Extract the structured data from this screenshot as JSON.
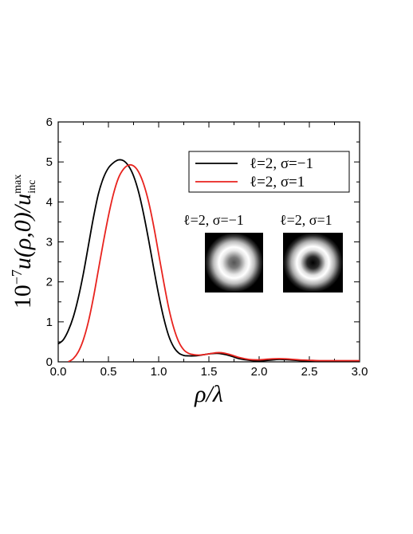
{
  "chart_data": {
    "type": "line",
    "xlabel": "ρ/λ",
    "ylabel": "10⁻⁷u(ρ,0)/u_inc^max",
    "ylabel_parts": {
      "prefix": "10",
      "exp": "−7",
      "mid": "u(ρ,0)/u",
      "sub": "inc",
      "sup": "max"
    },
    "xlim": [
      0.0,
      3.0
    ],
    "ylim": [
      0,
      6
    ],
    "xticks": [
      "0.0",
      "0.5",
      "1.0",
      "1.5",
      "2.0",
      "2.5",
      "3.0"
    ],
    "yticks": [
      "0",
      "1",
      "2",
      "3",
      "4",
      "5",
      "6"
    ],
    "grid": false,
    "legend_position": "top-right",
    "series": [
      {
        "name": "ℓ=2, σ=−1",
        "color": "#000000",
        "x": [
          0.0,
          0.05,
          0.1,
          0.15,
          0.2,
          0.25,
          0.3,
          0.35,
          0.4,
          0.45,
          0.5,
          0.55,
          0.6,
          0.65,
          0.7,
          0.75,
          0.8,
          0.85,
          0.9,
          0.95,
          1.0,
          1.05,
          1.1,
          1.15,
          1.2,
          1.25,
          1.3,
          1.35,
          1.4,
          1.45,
          1.5,
          1.55,
          1.6,
          1.65,
          1.7,
          1.75,
          1.8,
          1.9,
          2.0,
          2.1,
          2.2,
          2.3,
          2.4,
          2.5,
          2.6,
          2.8,
          3.0
        ],
        "y": [
          0.45,
          0.55,
          0.78,
          1.12,
          1.6,
          2.2,
          2.9,
          3.6,
          4.2,
          4.6,
          4.85,
          4.98,
          5.05,
          5.03,
          4.9,
          4.65,
          4.25,
          3.7,
          3.05,
          2.35,
          1.68,
          1.1,
          0.65,
          0.37,
          0.22,
          0.16,
          0.15,
          0.15,
          0.16,
          0.18,
          0.2,
          0.21,
          0.21,
          0.19,
          0.16,
          0.12,
          0.08,
          0.04,
          0.02,
          0.04,
          0.06,
          0.05,
          0.03,
          0.02,
          0.02,
          0.02,
          0.02
        ]
      },
      {
        "name": "ℓ=2, σ=1",
        "color": "#e8231e",
        "x": [
          0.1,
          0.15,
          0.2,
          0.25,
          0.3,
          0.35,
          0.4,
          0.45,
          0.5,
          0.55,
          0.6,
          0.65,
          0.7,
          0.75,
          0.8,
          0.85,
          0.9,
          0.95,
          1.0,
          1.05,
          1.1,
          1.15,
          1.2,
          1.25,
          1.3,
          1.35,
          1.4,
          1.45,
          1.5,
          1.55,
          1.6,
          1.65,
          1.7,
          1.75,
          1.8,
          1.9,
          2.0,
          2.1,
          2.2,
          2.3,
          2.4,
          2.5,
          2.6,
          2.8,
          3.0
        ],
        "y": [
          0.0,
          0.08,
          0.25,
          0.55,
          1.0,
          1.6,
          2.3,
          3.0,
          3.65,
          4.2,
          4.6,
          4.82,
          4.92,
          4.9,
          4.75,
          4.45,
          4.0,
          3.4,
          2.7,
          2.0,
          1.35,
          0.85,
          0.5,
          0.3,
          0.21,
          0.18,
          0.17,
          0.18,
          0.2,
          0.22,
          0.23,
          0.22,
          0.19,
          0.15,
          0.11,
          0.06,
          0.05,
          0.07,
          0.08,
          0.07,
          0.05,
          0.04,
          0.03,
          0.03,
          0.03
        ]
      }
    ]
  },
  "insets": [
    {
      "label": "ℓ=2, σ=−1",
      "type": "ring-profile",
      "center_dark_level": 0.35
    },
    {
      "label": "ℓ=2, σ=1",
      "type": "ring-profile",
      "center_dark_level": 0.0
    }
  ]
}
